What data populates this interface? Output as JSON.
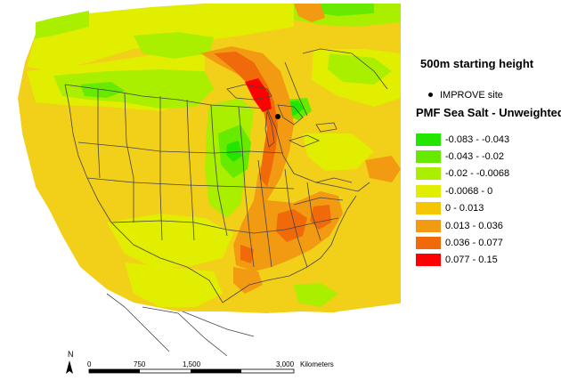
{
  "map": {
    "north_label": "N",
    "scale_ticks": [
      "0",
      "750",
      "1,500",
      "3,000"
    ],
    "scale_unit": "Kilometers",
    "receptor": "IMPROVE site",
    "colors": {
      "background": "#ffffff",
      "boundary_lines": "#444444",
      "base_field": "#f2cf18",
      "ocean_mask": "#ffffff"
    }
  },
  "legend": {
    "heading": "500m starting height",
    "site_label": "IMPROVE site",
    "title": "PMF Sea Salt - Unweighted",
    "classes": [
      {
        "label": "-0.083 - -0.043",
        "color": "#22e600"
      },
      {
        "label": "-0.043 - -0.02",
        "color": "#66ea00"
      },
      {
        "label": "-0.02 - -0.0068",
        "color": "#aaee00"
      },
      {
        "label": "-0.0068 - 0",
        "color": "#e2ee00"
      },
      {
        "label": "0 - 0.013",
        "color": "#f5c700"
      },
      {
        "label": "0.013 - 0.036",
        "color": "#f29a12"
      },
      {
        "label": "0.036 - 0.077",
        "color": "#f06a0a"
      },
      {
        "label": "0.077 - 0.15",
        "color": "#ff0000"
      }
    ]
  }
}
